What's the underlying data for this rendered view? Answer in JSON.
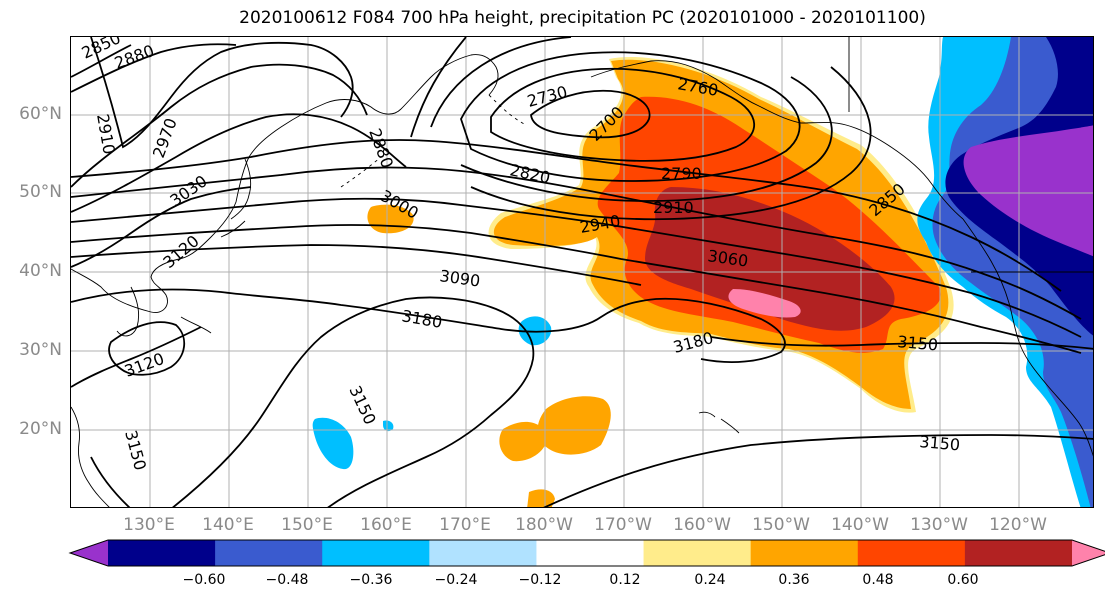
{
  "title": "2020100612 F084 700 hPa height, precipitation PC (2020101000 - 2020101100)",
  "map": {
    "lat_ticks": [
      {
        "label": "60°N",
        "value": 60
      },
      {
        "label": "50°N",
        "value": 50
      },
      {
        "label": "40°N",
        "value": 40
      },
      {
        "label": "30°N",
        "value": 30
      },
      {
        "label": "20°N",
        "value": 20
      }
    ],
    "lon_ticks": [
      {
        "label": "130°E",
        "value": 130
      },
      {
        "label": "140°E",
        "value": 140
      },
      {
        "label": "150°E",
        "value": 150
      },
      {
        "label": "160°E",
        "value": 160
      },
      {
        "label": "170°E",
        "value": 170
      },
      {
        "label": "180°W",
        "value": 180
      },
      {
        "label": "170°W",
        "value": 190
      },
      {
        "label": "160°W",
        "value": 200
      },
      {
        "label": "150°W",
        "value": 210
      },
      {
        "label": "140°W",
        "value": 220
      },
      {
        "label": "130°W",
        "value": 230
      },
      {
        "label": "120°W",
        "value": 240
      }
    ],
    "contour_labels": [
      "2850",
      "2880",
      "2910",
      "2970",
      "3030",
      "3120",
      "3120",
      "3150",
      "2880",
      "3000",
      "2730",
      "2700",
      "2760",
      "2820",
      "2790",
      "2940",
      "2910",
      "3060",
      "3090",
      "3180",
      "3180",
      "3150",
      "3150",
      "3150",
      "2850"
    ],
    "contour_color": "#000000",
    "gridline_color": "#b0b0b0",
    "grid": true
  },
  "colorbar": {
    "colors": [
      "#9932cc",
      "#00008b",
      "#3a5bcf",
      "#00bfff",
      "#b0e2ff",
      "#ffffff",
      "#ffec8b",
      "#ffa500",
      "#ff4500",
      "#b22222",
      "#ff82ab"
    ],
    "tick_labels": [
      "−0.60",
      "−0.48",
      "−0.36",
      "−0.24",
      "−0.12",
      "0.12",
      "0.24",
      "0.36",
      "0.48",
      "0.60"
    ]
  }
}
